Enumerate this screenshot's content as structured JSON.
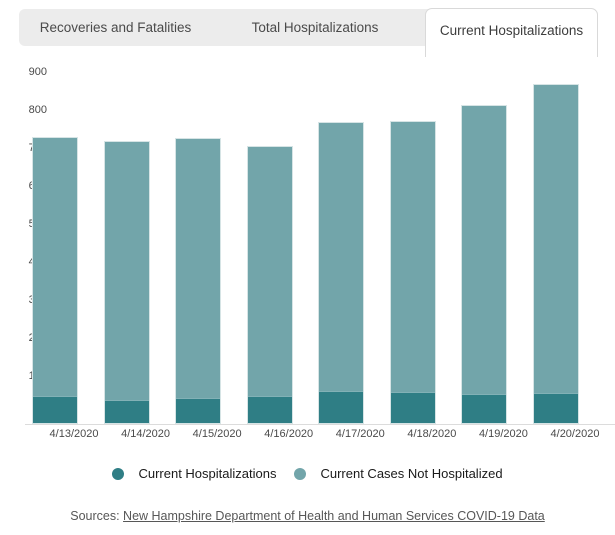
{
  "tabs": {
    "items": [
      {
        "label": "Recoveries and Fatalities",
        "active": false
      },
      {
        "label": "Total Hospitalizations",
        "active": false
      },
      {
        "label": "Current Hospitalizations",
        "active": true
      }
    ]
  },
  "chart_data": {
    "type": "bar",
    "stacked": true,
    "title": "Current Hospitalizations",
    "xlabel": "",
    "ylabel": "",
    "categories": [
      "4/13/2020",
      "4/14/2020",
      "4/15/2020",
      "4/16/2020",
      "4/17/2020",
      "4/18/2020",
      "4/19/2020",
      "4/20/2020"
    ],
    "series": [
      {
        "name": "Current Hospitalizations",
        "color": "#2f7e85",
        "values": [
          71,
          61,
          66,
          72,
          85,
          84,
          78,
          79
        ]
      },
      {
        "name": "Current Cases Not Hospitalized",
        "color": "#72a5aa",
        "values": [
          679,
          678,
          680,
          653,
          703,
          709,
          757,
          810
        ]
      }
    ],
    "ylim": [
      0,
      900
    ],
    "yticks": [
      0,
      100,
      200,
      300,
      400,
      500,
      600,
      700,
      800,
      900
    ],
    "grid": false,
    "legend_position": "bottom"
  },
  "source": {
    "prefix": "Sources: ",
    "link": "New Hampshire Department of Health and Human Services COVID-19 Data"
  },
  "colors": {
    "tab_strip_bg": "#ececec",
    "active_tab_bg": "#ffffff",
    "series_dark": "#2f7e85",
    "series_light": "#72a5aa",
    "axis_line": "#dcdcdc",
    "bar_outline": "#d6e4e5"
  }
}
